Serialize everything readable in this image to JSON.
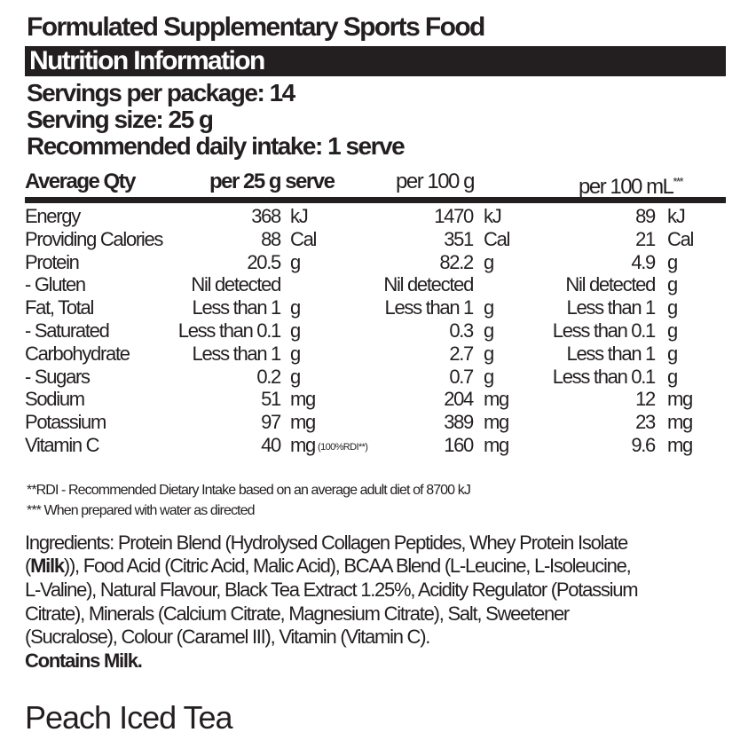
{
  "title": "Formulated Supplementary Sports Food",
  "panel_title": "Nutrition Information",
  "servings": [
    "Servings per package: 14",
    "Serving size: 25 g",
    "Recommended daily intake: 1 serve"
  ],
  "header": {
    "label": "Average Qty",
    "col1": "per 25 g serve",
    "col2": "per 100 g",
    "col3": "per 100 mL",
    "col3_mark": "***"
  },
  "rows": [
    {
      "label": "Energy",
      "c1": [
        "368",
        "kJ"
      ],
      "c2": [
        "1470",
        "kJ"
      ],
      "c3": [
        "89",
        "kJ"
      ]
    },
    {
      "label": "Providing Calories",
      "c1": [
        "88",
        "Cal"
      ],
      "c2": [
        "351",
        "Cal"
      ],
      "c3": [
        "21",
        "Cal"
      ]
    },
    {
      "label": "Protein",
      "c1": [
        "20.5",
        "g"
      ],
      "c2": [
        "82.2",
        "g"
      ],
      "c3": [
        "4.9",
        "g"
      ]
    },
    {
      "label": "- Gluten",
      "c1": [
        "Nil detected",
        ""
      ],
      "c2": [
        "Nil detected",
        ""
      ],
      "c3": [
        "Nil detected",
        "g"
      ]
    },
    {
      "label": "Fat, Total",
      "c1": [
        "Less than 1",
        "g"
      ],
      "c2": [
        "Less than 1",
        "g"
      ],
      "c3": [
        "Less than 1",
        "g"
      ]
    },
    {
      "label": "- Saturated",
      "c1": [
        "Less than 0.1",
        "g"
      ],
      "c2": [
        "0.3",
        "g"
      ],
      "c3": [
        "Less than 0.1",
        "g"
      ]
    },
    {
      "label": "Carbohydrate",
      "c1": [
        "Less than 1",
        "g"
      ],
      "c2": [
        "2.7",
        "g"
      ],
      "c3": [
        "Less than 1",
        "g"
      ]
    },
    {
      "label": "- Sugars",
      "c1": [
        "0.2",
        "g"
      ],
      "c2": [
        "0.7",
        "g"
      ],
      "c3": [
        "Less than 0.1",
        "g"
      ]
    },
    {
      "label": "Sodium",
      "c1": [
        "51",
        "mg"
      ],
      "c2": [
        "204",
        "mg"
      ],
      "c3": [
        "12",
        "mg"
      ]
    },
    {
      "label": "Potassium",
      "c1": [
        "97",
        "mg"
      ],
      "c2": [
        "389",
        "mg"
      ],
      "c3": [
        "23",
        "mg"
      ]
    },
    {
      "label": "Vitamin C",
      "c1": [
        "40",
        "mg"
      ],
      "c2": [
        "160",
        "mg"
      ],
      "c3": [
        "9.6",
        "mg"
      ],
      "note": "(100%RDI**)"
    }
  ],
  "footnotes": [
    "**RDI - Recommended Dietary Intake based on an average adult diet of 8700 kJ",
    "*** When prepared with water as directed"
  ],
  "ingredients": {
    "line1": "Ingredients: Protein Blend (Hydrolysed Collagen Peptides, Whey Protein Isolate",
    "line2_open": "(",
    "line2_bold": "Milk",
    "line2_rest": ")), Food Acid (Citric Acid, Malic Acid), BCAA Blend (L-Leucine, L-Isoleucine,",
    "line3": "L-Valine), Natural Flavour, Black Tea Extract 1.25%, Acidity Regulator (Potassium",
    "line4": "Citrate), Minerals (Calcium Citrate, Magnesium Citrate), Salt, Sweetener",
    "line5": "(Sucralose), Colour (Caramel III), Vitamin (Vitamin C).",
    "allergen": "Contains Milk."
  },
  "flavour": "Peach Iced Tea"
}
